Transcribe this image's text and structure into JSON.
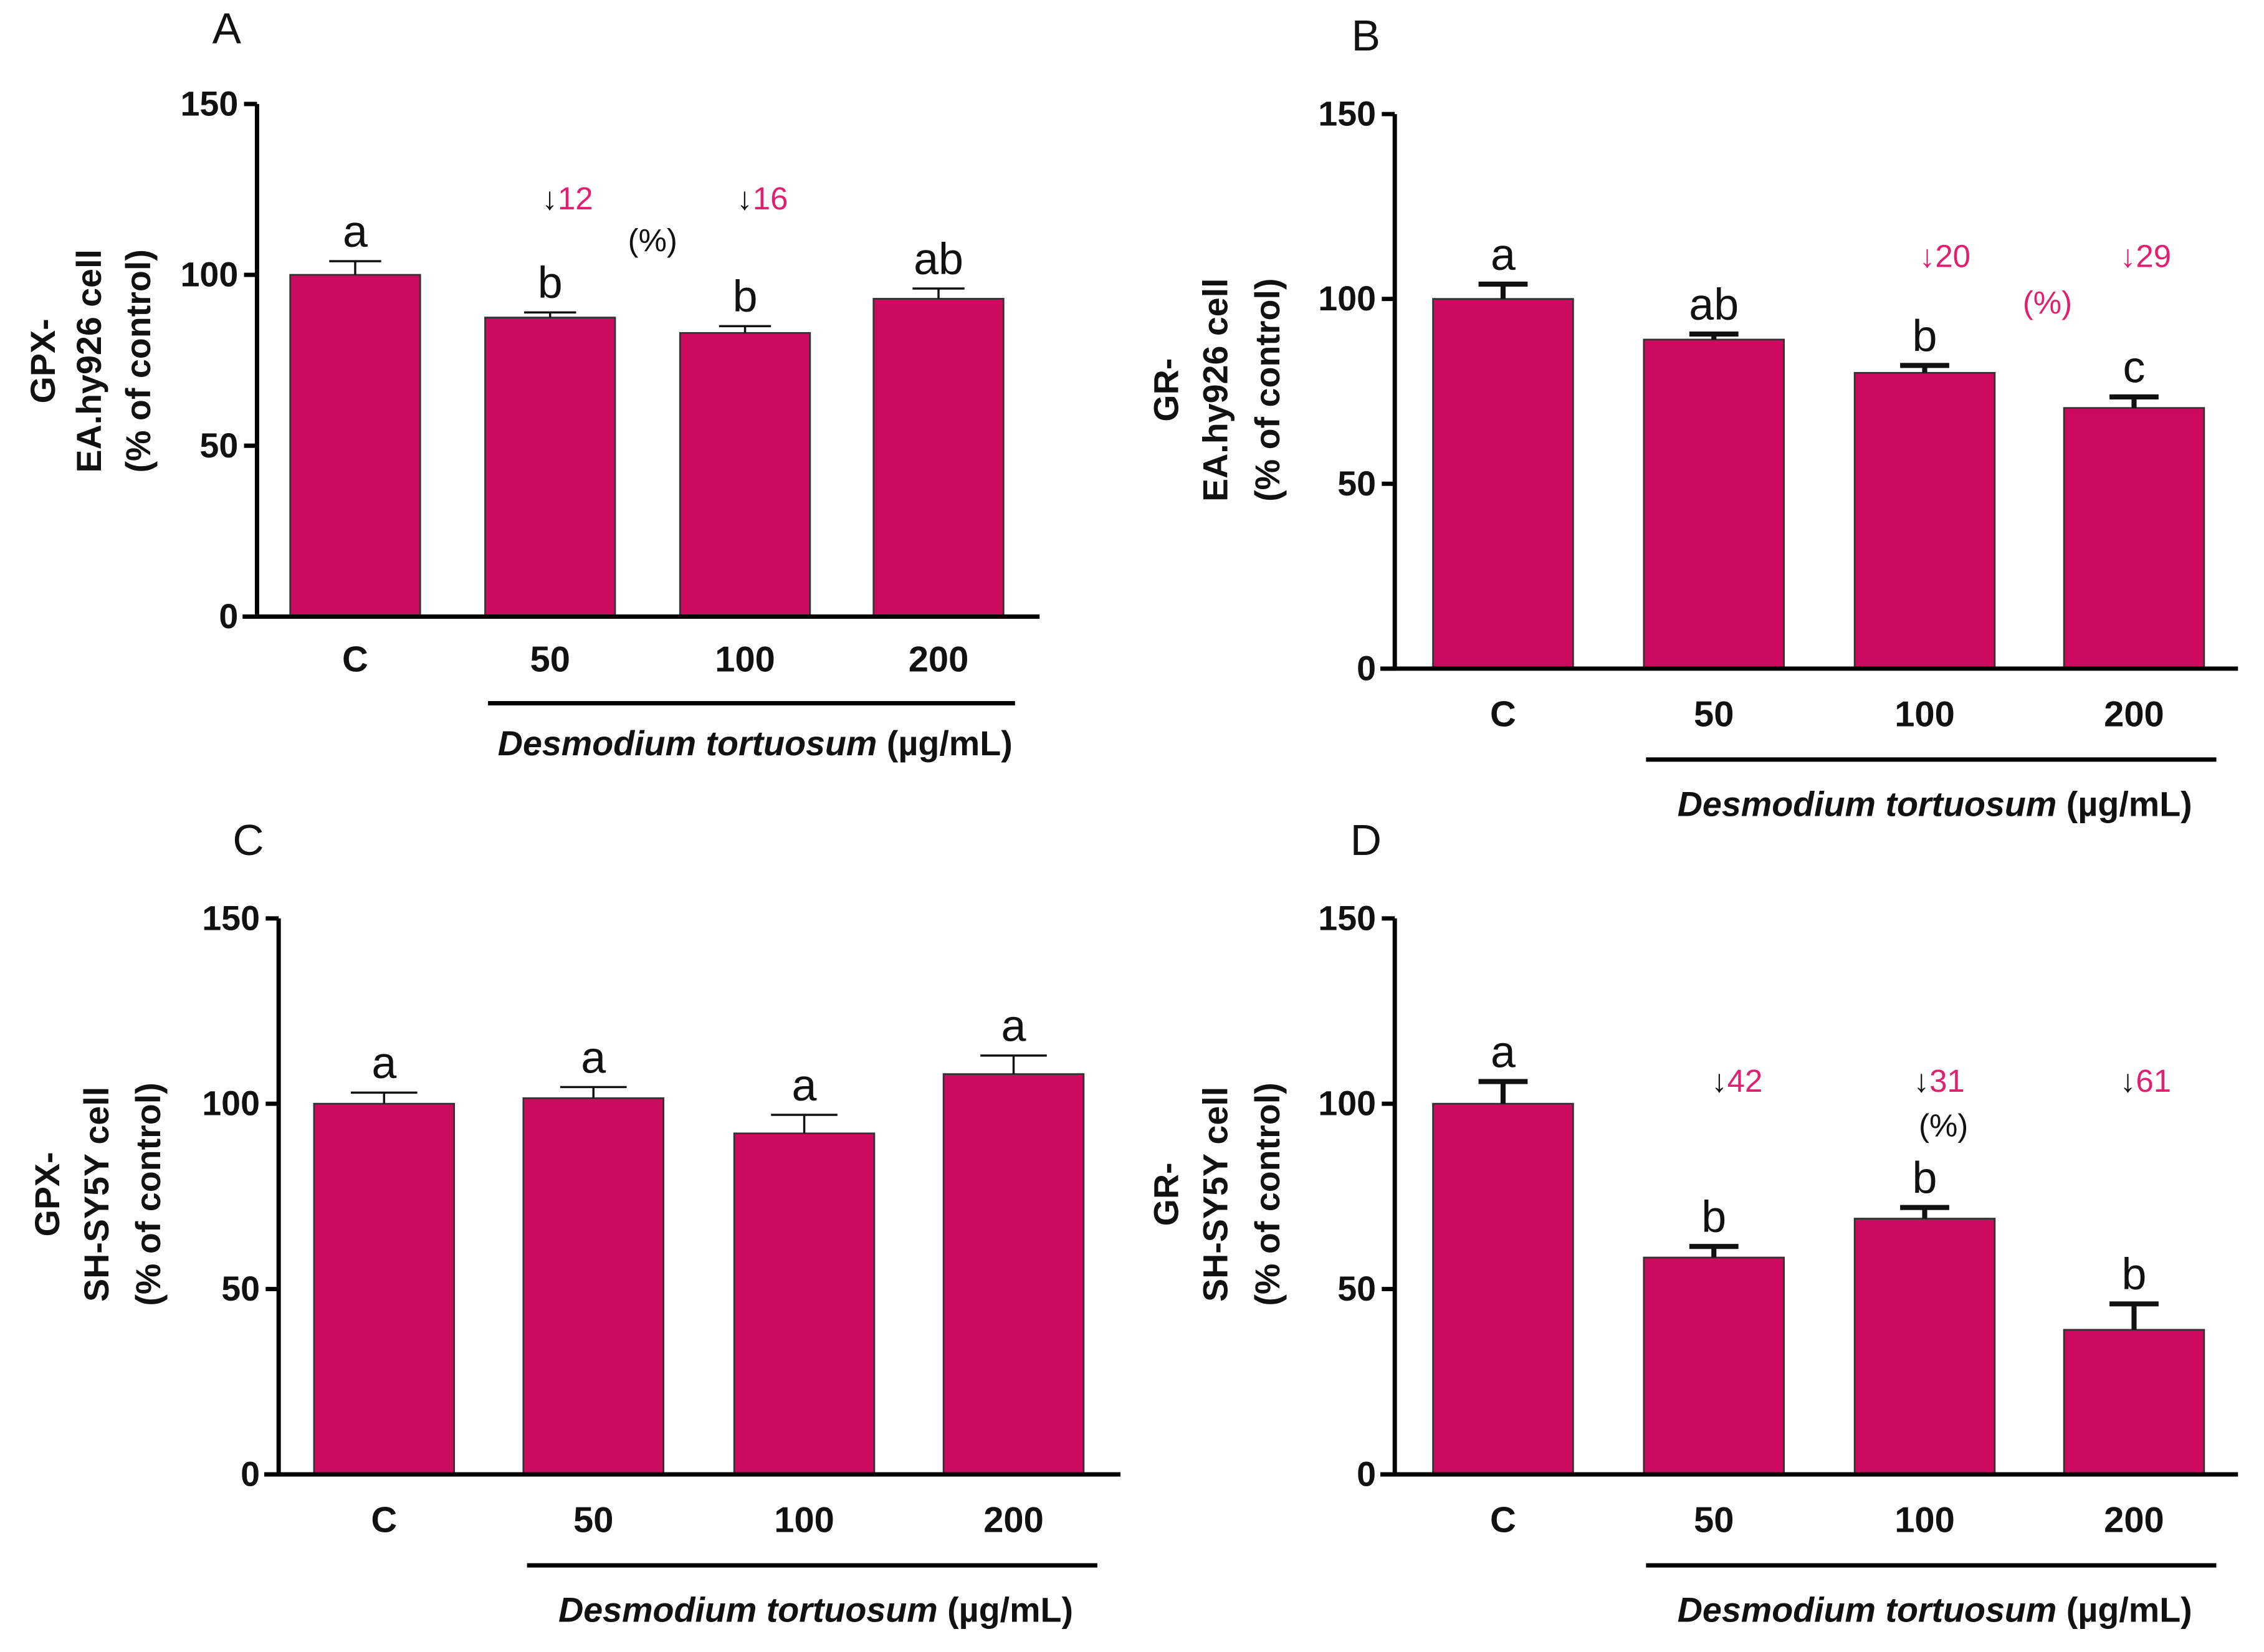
{
  "colors": {
    "bar": "#cc0a5e",
    "annotation": "#e0206e",
    "axis": "#000000"
  },
  "chart_data": [
    {
      "panel": "A",
      "type": "bar",
      "ylabel": [
        "GPX-",
        "EA.hy926 cell",
        "(% of control)"
      ],
      "xlabel_italic": "Desmodium tortuosum",
      "xlabel_unit": " (µg/mL)",
      "categories": [
        "C",
        "50",
        "100",
        "200"
      ],
      "values": [
        100,
        87.5,
        83,
        93
      ],
      "errors": [
        4,
        1.5,
        2,
        3
      ],
      "letters": [
        "a",
        "b",
        "b",
        "ab"
      ],
      "yticks": [
        0,
        50,
        100,
        150
      ],
      "ylim": [
        0,
        150
      ],
      "reductions": [
        null,
        "12",
        "16",
        null
      ],
      "reduction_unit": "(%)"
    },
    {
      "panel": "B",
      "type": "bar",
      "ylabel": [
        "GR-",
        "EA.hy926 cell",
        "(% of control)"
      ],
      "xlabel_italic": "Desmodium tortuosum",
      "xlabel_unit": " (µg/mL)",
      "categories": [
        "C",
        "50",
        "100",
        "200"
      ],
      "values": [
        100,
        89,
        80,
        70.5
      ],
      "errors": [
        4,
        1.5,
        2,
        3
      ],
      "letters": [
        "a",
        "ab",
        "b",
        "c"
      ],
      "yticks": [
        0,
        50,
        100,
        150
      ],
      "ylim": [
        0,
        150
      ],
      "reductions": [
        null,
        null,
        "20",
        "29"
      ],
      "reduction_unit": "(%)"
    },
    {
      "panel": "C",
      "type": "bar",
      "ylabel": [
        "GPX-",
        "SH-SY5Y cell",
        "(% of control)"
      ],
      "xlabel_italic": "Desmodium tortuosum",
      "xlabel_unit": " (µg/mL)",
      "categories": [
        "C",
        "50",
        "100",
        "200"
      ],
      "values": [
        100,
        101.5,
        92,
        108
      ],
      "errors": [
        3,
        3,
        5,
        5
      ],
      "letters": [
        "a",
        "a",
        "a",
        "a"
      ],
      "yticks": [
        0,
        50,
        100,
        150
      ],
      "ylim": [
        0,
        150
      ],
      "reductions": [
        null,
        null,
        null,
        null
      ],
      "reduction_unit": null
    },
    {
      "panel": "D",
      "type": "bar",
      "ylabel": [
        "GR-",
        "SH-SY5Y cell",
        "(% of control)"
      ],
      "xlabel_italic": "Desmodium tortuosum",
      "xlabel_unit": " (µg/mL)",
      "categories": [
        "C",
        "50",
        "100",
        "200"
      ],
      "values": [
        100,
        58.5,
        69,
        39
      ],
      "errors": [
        6,
        3,
        3,
        7
      ],
      "letters": [
        "a",
        "b",
        "b",
        "b"
      ],
      "yticks": [
        0,
        50,
        100,
        150
      ],
      "ylim": [
        0,
        150
      ],
      "reductions": [
        null,
        "42",
        "31",
        "61"
      ],
      "reduction_unit": "(%)"
    }
  ]
}
